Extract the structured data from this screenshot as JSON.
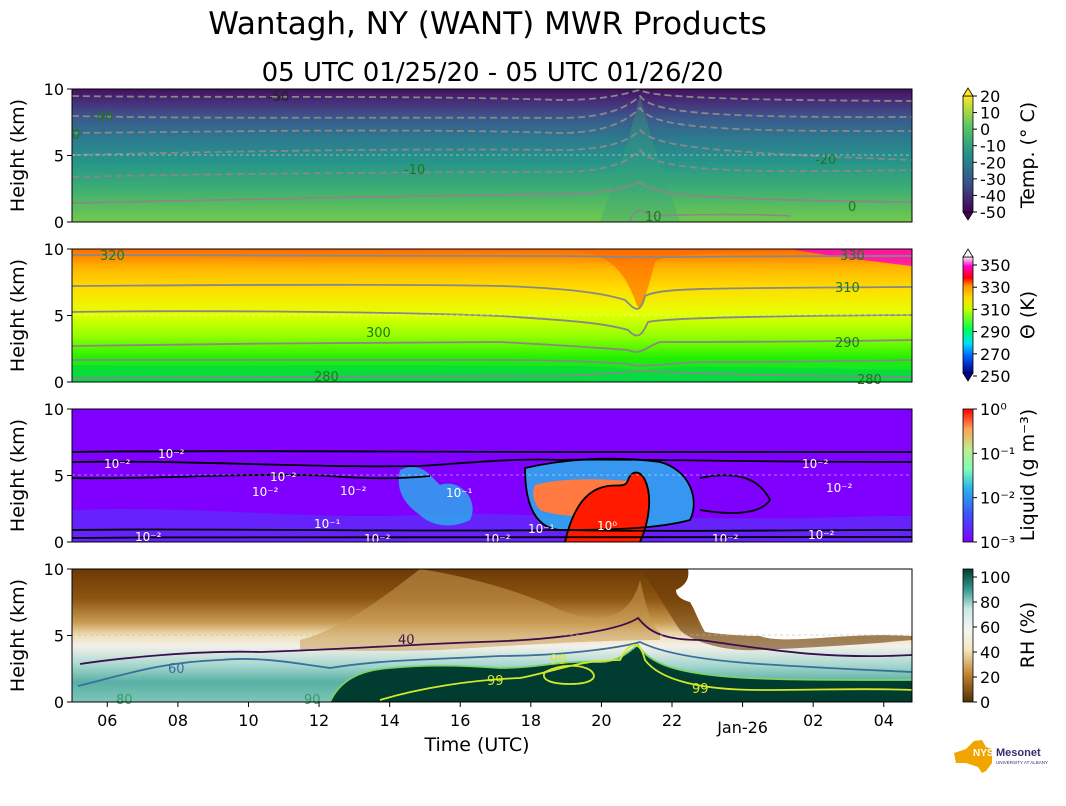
{
  "title": "Wantagh, NY (WANT) MWR Products",
  "subtitle": "05 UTC 01/25/20 - 05 UTC 01/26/20",
  "colors": {
    "contour_gray": "#888888",
    "contour_label_green": "#1a7a1a",
    "liquid_background": "#7f00ff",
    "liquid_red": "#ff1a00",
    "rh_dark_teal": "#003c30",
    "rh_brown": "#6b3a06",
    "rh_40_line": "#3b0f4f",
    "rh_60_line": "#3a6f9a",
    "rh_99_line": "#d4e82b"
  },
  "logo": {
    "text": "NYS Mesonet",
    "subtext": "UNIVERSITY AT ALBANY"
  },
  "chart_data": [
    {
      "type": "heatmap",
      "name": "temperature",
      "ylabel": "Height (km)",
      "ylim": [
        0,
        10
      ],
      "yticks": [
        "0",
        "5",
        "10"
      ],
      "colorbar_label": "Temp. (° C)",
      "colorbar_ticks": [
        "20",
        "10",
        "0",
        "-10",
        "-20",
        "-30",
        "-40",
        "-50"
      ],
      "contour_labels": [
        "-50",
        "-40",
        "-30",
        "-20",
        "-10",
        "0",
        "10"
      ],
      "contour_levels_c": [
        -50,
        -40,
        -30,
        -20,
        -10,
        0,
        10
      ]
    },
    {
      "type": "heatmap",
      "name": "potential_temperature",
      "ylabel": "Height (km)",
      "ylim": [
        0,
        10
      ],
      "yticks": [
        "0",
        "5",
        "10"
      ],
      "colorbar_label": "Θ (K)",
      "colorbar_ticks": [
        "350",
        "330",
        "310",
        "290",
        "270",
        "250"
      ],
      "contour_labels": [
        "320",
        "330",
        "310",
        "300",
        "290",
        "280",
        "280"
      ]
    },
    {
      "type": "heatmap",
      "name": "liquid_water",
      "ylabel": "Height (km)",
      "ylim": [
        0,
        10
      ],
      "yticks": [
        "0",
        "5",
        "10"
      ],
      "colorbar_label": "Liquid (g m⁻³)",
      "colorbar_ticks": [
        "10⁰",
        "10⁻¹",
        "10⁻²",
        "10⁻³"
      ],
      "contour_labels": [
        "10⁻²",
        "10⁻¹",
        "10⁰"
      ]
    },
    {
      "type": "heatmap",
      "name": "relative_humidity",
      "ylabel": "Height (km)",
      "ylim": [
        0,
        10
      ],
      "yticks": [
        "0",
        "5",
        "10"
      ],
      "xlabel": "Time (UTC)",
      "xticks": [
        "06",
        "08",
        "10",
        "12",
        "14",
        "16",
        "18",
        "20",
        "22",
        "Jan-26",
        "02",
        "04"
      ],
      "colorbar_label": "RH (%)",
      "colorbar_ticks": [
        "100",
        "80",
        "60",
        "40",
        "20",
        "0"
      ],
      "contour_labels": [
        "40",
        "60",
        "80",
        "90",
        "99",
        "99",
        "99"
      ]
    }
  ]
}
